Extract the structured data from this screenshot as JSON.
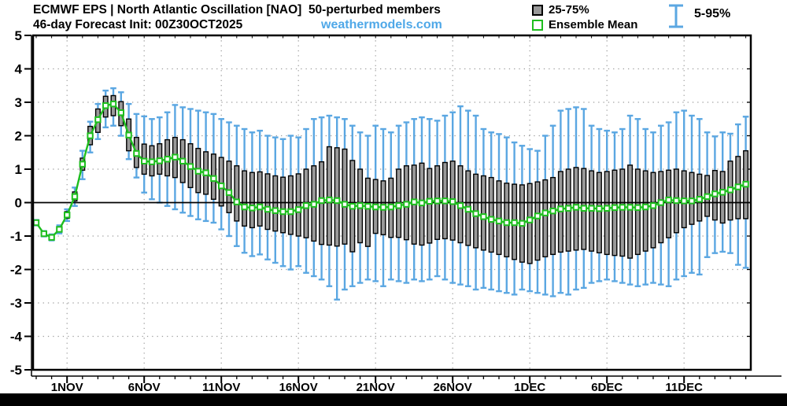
{
  "header": {
    "title_line1": "ECMWF EPS | North Atlantic Oscillation [NAO]  50-perturbed members",
    "title_line2": "46-day Forecast Init: 00Z30OCT2025",
    "watermark": "weathermodels.com"
  },
  "legend": {
    "box_label": "25-75%",
    "mean_label": "Ensemble Mean",
    "whisker_label": "5-95%"
  },
  "colors": {
    "whisker": "#5BA7E2",
    "box_fill": "#999999",
    "box_stroke": "#000000",
    "mean": "#1EBE1E",
    "watermark": "#4FA8E8",
    "grid": "#9C9C9C",
    "axis": "#000000",
    "footer": "#000000"
  },
  "chart_data": {
    "type": "box-whisker-timeseries",
    "title": "ECMWF EPS | North Atlantic Oscillation [NAO] 50-perturbed members",
    "subtitle": "46-day Forecast Init: 00Z30OCT2025",
    "points_per_day": 2,
    "start_label": "30OCT2025 00Z",
    "n_points": 93,
    "ylim": [
      -5,
      5
    ],
    "yticks": [
      5,
      4,
      3,
      2,
      1,
      0,
      -1,
      -2,
      -3,
      -4,
      -5
    ],
    "xticks": [
      {
        "label": "1NOV",
        "i": 4
      },
      {
        "label": "6NOV",
        "i": 14
      },
      {
        "label": "11NOV",
        "i": 24
      },
      {
        "label": "16NOV",
        "i": 34
      },
      {
        "label": "21NOV",
        "i": 44
      },
      {
        "label": "26NOV",
        "i": 54
      },
      {
        "label": "1DEC",
        "i": 64
      },
      {
        "label": "6DEC",
        "i": 74
      },
      {
        "label": "11DEC",
        "i": 84
      }
    ],
    "series": {
      "mean": [
        -0.6,
        -0.93,
        -1.04,
        -0.8,
        -0.37,
        0.18,
        1.15,
        2.0,
        2.48,
        2.9,
        2.95,
        2.69,
        2.02,
        1.47,
        1.24,
        1.22,
        1.25,
        1.3,
        1.36,
        1.24,
        1.08,
        0.94,
        0.89,
        0.72,
        0.5,
        0.3,
        0.02,
        -0.13,
        -0.16,
        -0.13,
        -0.2,
        -0.24,
        -0.27,
        -0.27,
        -0.21,
        -0.09,
        -0.05,
        0.06,
        0.08,
        0.06,
        -0.05,
        -0.11,
        -0.09,
        -0.11,
        -0.13,
        -0.14,
        -0.13,
        -0.09,
        -0.05,
        0.02,
        -0.01,
        0.04,
        0.05,
        0.05,
        0.03,
        -0.09,
        -0.2,
        -0.33,
        -0.42,
        -0.5,
        -0.55,
        -0.6,
        -0.6,
        -0.62,
        -0.52,
        -0.4,
        -0.31,
        -0.25,
        -0.19,
        -0.17,
        -0.14,
        -0.17,
        -0.17,
        -0.18,
        -0.17,
        -0.15,
        -0.14,
        -0.14,
        -0.15,
        -0.13,
        -0.09,
        0.0,
        0.08,
        0.06,
        0.05,
        0.05,
        0.1,
        0.18,
        0.26,
        0.31,
        0.38,
        0.47,
        0.55
      ],
      "p75": [
        -0.55,
        -0.88,
        -0.99,
        -0.73,
        -0.27,
        0.32,
        1.33,
        2.28,
        2.8,
        3.18,
        3.2,
        3.02,
        2.5,
        1.95,
        1.75,
        1.7,
        1.76,
        1.88,
        1.95,
        1.88,
        1.76,
        1.62,
        1.52,
        1.45,
        1.35,
        1.24,
        1.1,
        0.95,
        0.9,
        0.92,
        0.86,
        0.8,
        0.76,
        0.8,
        0.86,
        1.0,
        1.1,
        1.22,
        1.67,
        1.64,
        1.6,
        1.26,
        1.0,
        0.73,
        0.69,
        0.65,
        0.73,
        1.0,
        1.1,
        1.12,
        1.18,
        1.02,
        1.1,
        1.2,
        1.24,
        1.1,
        0.95,
        0.85,
        0.8,
        0.75,
        0.65,
        0.58,
        0.55,
        0.53,
        0.57,
        0.62,
        0.68,
        0.75,
        0.93,
        1.0,
        1.05,
        1.02,
        0.95,
        0.9,
        0.93,
        0.97,
        1.0,
        1.12,
        1.0,
        0.95,
        0.9,
        0.93,
        0.97,
        1.0,
        0.95,
        0.9,
        0.85,
        0.81,
        0.96,
        0.93,
        1.24,
        1.38,
        1.55
      ],
      "p25": [
        -0.65,
        -0.98,
        -1.09,
        -0.87,
        -0.47,
        0.05,
        0.97,
        1.73,
        2.1,
        2.56,
        2.6,
        2.3,
        1.55,
        1.05,
        0.85,
        0.8,
        0.85,
        0.8,
        0.75,
        0.6,
        0.45,
        0.3,
        0.25,
        0.1,
        -0.1,
        -0.3,
        -0.55,
        -0.7,
        -0.75,
        -0.7,
        -0.8,
        -0.85,
        -0.9,
        -0.95,
        -1.0,
        -1.05,
        -1.15,
        -1.25,
        -1.27,
        -1.3,
        -1.24,
        -1.47,
        -1.2,
        -1.31,
        -0.92,
        -0.96,
        -1.04,
        -1.04,
        -1.11,
        -1.24,
        -1.27,
        -1.21,
        -1.1,
        -1.08,
        -1.12,
        -1.2,
        -1.28,
        -1.35,
        -1.42,
        -1.48,
        -1.55,
        -1.62,
        -1.7,
        -1.78,
        -1.82,
        -1.72,
        -1.62,
        -1.55,
        -1.48,
        -1.45,
        -1.42,
        -1.4,
        -1.45,
        -1.5,
        -1.55,
        -1.58,
        -1.6,
        -1.66,
        -1.55,
        -1.45,
        -1.35,
        -1.2,
        -1.05,
        -0.9,
        -0.75,
        -0.65,
        -0.55,
        -0.41,
        -0.52,
        -0.61,
        -0.52,
        -0.48,
        -0.48
      ],
      "p95": [
        -0.52,
        -0.85,
        -0.95,
        -0.68,
        -0.2,
        0.45,
        1.55,
        2.42,
        2.95,
        3.35,
        3.42,
        3.3,
        2.95,
        2.65,
        2.58,
        2.5,
        2.55,
        2.7,
        2.92,
        2.85,
        2.8,
        2.75,
        2.7,
        2.65,
        2.5,
        2.4,
        2.3,
        2.2,
        2.1,
        2.15,
        2.0,
        1.95,
        1.9,
        2.0,
        1.95,
        2.2,
        2.5,
        2.55,
        2.6,
        2.55,
        2.5,
        2.3,
        2.1,
        2.0,
        2.3,
        2.2,
        2.1,
        2.3,
        2.4,
        2.5,
        2.55,
        2.5,
        2.45,
        2.6,
        2.7,
        2.88,
        2.75,
        2.6,
        2.2,
        2.1,
        2.05,
        1.95,
        1.8,
        1.7,
        1.6,
        1.55,
        2.0,
        2.3,
        2.75,
        2.8,
        2.85,
        2.8,
        2.3,
        2.2,
        2.15,
        2.1,
        2.2,
        2.6,
        2.5,
        2.2,
        2.1,
        2.3,
        2.4,
        2.7,
        2.75,
        2.6,
        2.5,
        2.1,
        1.98,
        2.1,
        2.06,
        2.34,
        2.57
      ],
      "p5": [
        -0.68,
        -1.01,
        -1.13,
        -0.92,
        -0.55,
        -0.1,
        0.7,
        1.5,
        1.9,
        2.25,
        2.3,
        2.0,
        1.3,
        0.75,
        0.3,
        0.1,
        0.0,
        -0.1,
        -0.2,
        -0.3,
        -0.4,
        -0.5,
        -0.55,
        -0.6,
        -0.8,
        -1.0,
        -1.3,
        -1.5,
        -1.6,
        -1.55,
        -1.7,
        -1.8,
        -1.9,
        -2.0,
        -1.9,
        -2.1,
        -2.2,
        -2.3,
        -2.5,
        -2.9,
        -2.6,
        -2.5,
        -2.4,
        -2.3,
        -2.35,
        -2.5,
        -2.3,
        -2.35,
        -2.4,
        -2.3,
        -2.35,
        -2.3,
        -2.2,
        -2.3,
        -2.4,
        -2.45,
        -2.5,
        -2.6,
        -2.55,
        -2.6,
        -2.65,
        -2.7,
        -2.75,
        -2.6,
        -2.65,
        -2.7,
        -2.75,
        -2.8,
        -2.7,
        -2.75,
        -2.6,
        -2.55,
        -2.4,
        -2.35,
        -2.3,
        -2.35,
        -2.4,
        -2.45,
        -2.5,
        -2.45,
        -2.4,
        -2.45,
        -2.5,
        -2.3,
        -2.2,
        -2.1,
        -2.15,
        -1.63,
        -1.51,
        -1.47,
        -1.51,
        -1.86,
        -1.95
      ]
    },
    "legend_entries": [
      "25-75%",
      "Ensemble Mean",
      "5-95%"
    ],
    "grid": "dotted horizontal and vertical at major ticks, solid line at 0"
  }
}
